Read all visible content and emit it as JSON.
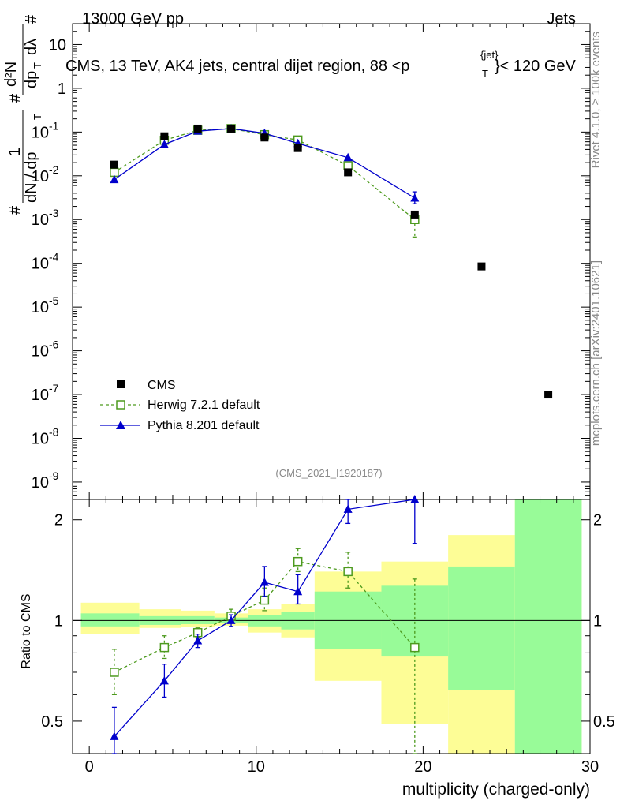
{
  "header": {
    "left": "13000 GeV pp",
    "right": "Jets"
  },
  "side_labels": {
    "rivet": "Rivet 4.1.0, ≥ 100k events",
    "mcplots": "mcplots.cern.ch [arXiv:2401.10621]"
  },
  "main_ylabel": {
    "prefix": "#",
    "numer_top": "1",
    "numer_frac": "dN / dp",
    "numer_sub": "T",
    "numer_hash": "#",
    "right_top": "d²N",
    "right_bottom": "dp",
    "right_bottom_sub": "T",
    "right_bottom_tail": "dλ",
    "right_hash": "#"
  },
  "chart_data": [
    {
      "type": "scatter",
      "title": "CMS, 13 TeV, AK4 jets, central dijet region, 88 <p",
      "title_sup": "{jet}",
      "title_sub": "T",
      "title_tail": "}< 120 GeV",
      "watermark": "(CMS_2021_I1920187)",
      "xlim": [
        -1,
        30
      ],
      "yscale": "log",
      "ylim": [
        4e-10,
        30
      ],
      "yticks": [
        {
          "v": 1e-09,
          "base": "10",
          "exp": "-9"
        },
        {
          "v": 1e-08,
          "base": "10",
          "exp": "-8"
        },
        {
          "v": 1e-07,
          "base": "10",
          "exp": "-7"
        },
        {
          "v": 1e-06,
          "base": "10",
          "exp": "-6"
        },
        {
          "v": 1e-05,
          "base": "10",
          "exp": "-5"
        },
        {
          "v": 0.0001,
          "base": "10",
          "exp": "-4"
        },
        {
          "v": 0.001,
          "base": "10",
          "exp": "-3"
        },
        {
          "v": 0.01,
          "base": "10",
          "exp": "-2"
        },
        {
          "v": 0.1,
          "base": "10",
          "exp": "-1"
        },
        {
          "v": 1,
          "base": "1",
          "exp": ""
        },
        {
          "v": 10,
          "base": "10",
          "exp": ""
        }
      ],
      "legend": {
        "position": "bottom-left",
        "entries": [
          "CMS",
          "Herwig 7.2.1 default",
          "Pythia 8.201 default"
        ]
      },
      "series": [
        {
          "name": "CMS",
          "style": "square-filled",
          "color": "#000000",
          "x": [
            1.5,
            4.5,
            6.5,
            8.5,
            10.5,
            12.5,
            15.5,
            19.5,
            23.5,
            27.5
          ],
          "y": [
            0.018,
            0.08,
            0.12,
            0.12,
            0.075,
            0.043,
            0.012,
            0.0013,
            8.5e-05,
            1e-07
          ]
        },
        {
          "name": "Herwig 7.2.1 default",
          "style": "square-open-dashed",
          "color": "#4d9a1e",
          "x": [
            1.5,
            4.5,
            6.5,
            8.5,
            10.5,
            12.5,
            15.5,
            19.5
          ],
          "y": [
            0.012,
            0.065,
            0.11,
            0.12,
            0.087,
            0.066,
            0.017,
            0.001
          ],
          "yerr_lo": [
            0.0,
            0.0,
            0.0,
            0.0,
            0.0,
            0.0,
            0.0,
            0.0006
          ],
          "yerr_hi": [
            0.0,
            0.0,
            0.0,
            0.0,
            0.0,
            0.0,
            0.0,
            0.0003
          ]
        },
        {
          "name": "Pythia 8.201 default",
          "style": "triangle-filled",
          "color": "#0000cc",
          "x": [
            1.5,
            4.5,
            6.5,
            8.5,
            10.5,
            12.5,
            15.5,
            19.5
          ],
          "y": [
            0.0082,
            0.052,
            0.105,
            0.12,
            0.094,
            0.055,
            0.026,
            0.0031
          ],
          "yerr_lo": [
            0.0,
            0.0,
            0.0,
            0.0,
            0.0,
            0.0,
            0.0,
            0.0008
          ],
          "yerr_hi": [
            0.0,
            0.0,
            0.0,
            0.0,
            0.0,
            0.0,
            0.0,
            0.0012
          ]
        }
      ]
    },
    {
      "type": "line",
      "ylabel": "Ratio to CMS",
      "xlabel": "multiplicity (charged-only)",
      "xlim": [
        -1,
        30
      ],
      "yscale": "log",
      "ylim": [
        0.4,
        2.3
      ],
      "xticks": [
        0,
        10,
        20,
        30
      ],
      "yticks": [
        0.5,
        1,
        2
      ],
      "reference_line": 1,
      "uncertainty_bands": [
        {
          "x0": -0.5,
          "x1": 3,
          "g_lo": 0.96,
          "g_hi": 1.05,
          "y_lo": 0.91,
          "y_hi": 1.13
        },
        {
          "x0": 3,
          "x1": 5.5,
          "g_lo": 0.97,
          "g_hi": 1.03,
          "y_lo": 0.95,
          "y_hi": 1.08
        },
        {
          "x0": 5.5,
          "x1": 7.5,
          "g_lo": 0.975,
          "g_hi": 1.03,
          "y_lo": 0.955,
          "y_hi": 1.07
        },
        {
          "x0": 7.5,
          "x1": 9.5,
          "g_lo": 0.98,
          "g_hi": 1.02,
          "y_lo": 0.965,
          "y_hi": 1.05
        },
        {
          "x0": 9.5,
          "x1": 11.5,
          "g_lo": 0.96,
          "g_hi": 1.04,
          "y_lo": 0.92,
          "y_hi": 1.08
        },
        {
          "x0": 11.5,
          "x1": 13.5,
          "g_lo": 0.94,
          "g_hi": 1.06,
          "y_lo": 0.89,
          "y_hi": 1.12
        },
        {
          "x0": 13.5,
          "x1": 17.5,
          "g_lo": 0.82,
          "g_hi": 1.22,
          "y_lo": 0.66,
          "y_hi": 1.4
        },
        {
          "x0": 17.5,
          "x1": 21.5,
          "g_lo": 0.78,
          "g_hi": 1.27,
          "y_lo": 0.49,
          "y_hi": 1.5
        },
        {
          "x0": 21.5,
          "x1": 25.5,
          "g_lo": 0.62,
          "g_hi": 1.45,
          "y_lo": 0.4,
          "y_hi": 1.8
        },
        {
          "x0": 25.5,
          "x1": 29.5,
          "g_lo": 0.4,
          "g_hi": 2.3,
          "y_lo": 0.4,
          "y_hi": 2.3
        }
      ],
      "series": [
        {
          "name": "Herwig 7.2.1 default",
          "style": "square-open-dashed",
          "color": "#4d9a1e",
          "x": [
            1.5,
            4.5,
            6.5,
            8.5,
            10.5,
            12.5,
            15.5,
            19.5
          ],
          "y": [
            0.7,
            0.83,
            0.92,
            1.03,
            1.15,
            1.5,
            1.4,
            0.83
          ],
          "yerr_lo": [
            0.1,
            0.06,
            0.03,
            0.04,
            0.08,
            0.1,
            0.15,
            0.45
          ],
          "yerr_hi": [
            0.12,
            0.07,
            0.03,
            0.05,
            0.1,
            0.14,
            0.2,
            0.5
          ]
        },
        {
          "name": "Pythia 8.201 default",
          "style": "triangle-filled",
          "color": "#0000cc",
          "x": [
            1.5,
            4.5,
            6.5,
            8.5,
            10.5,
            12.5,
            15.5,
            19.5
          ],
          "y": [
            0.45,
            0.66,
            0.87,
            1.0,
            1.3,
            1.22,
            2.15,
            2.3
          ],
          "yerr_lo": [
            0.08,
            0.07,
            0.04,
            0.04,
            0.12,
            0.1,
            0.2,
            0.6
          ],
          "yerr_hi": [
            0.1,
            0.08,
            0.04,
            0.04,
            0.15,
            0.15,
            0.25,
            0.2
          ]
        }
      ]
    }
  ]
}
